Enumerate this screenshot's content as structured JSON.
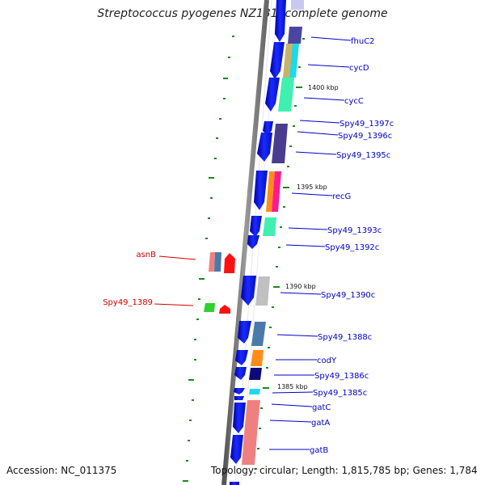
{
  "title": "Streptococcus pyogenes NZ131, complete genome",
  "footer": {
    "accession": "Accession: NC_011375",
    "summary": "Topology: circular; Length: 1,815,785 bp; Genes: 1,784"
  },
  "scale_labels": [
    "1400 kbp",
    "1395 kbp",
    "1390 kbp",
    "1385 kbp"
  ],
  "gene_labels_forward": [
    "fhuC2",
    "cycD",
    "cycC",
    "Spy49_1397c",
    "Spy49_1396c",
    "Spy49_1395c",
    "recG",
    "Spy49_1393c",
    "Spy49_1392c",
    "Spy49_1390c",
    "Spy49_1388c",
    "codY",
    "Spy49_1386c",
    "Spy49_1385c",
    "gatC",
    "gatA",
    "gatB"
  ],
  "gene_labels_reverse": [
    "asnB",
    "Spy49_1389"
  ],
  "colors": {
    "backbone": "#808080",
    "forward_label": "#0000c8",
    "reverse_label": "#d00000",
    "cds": "#0a14f0",
    "tick": "#1a8a1a"
  }
}
